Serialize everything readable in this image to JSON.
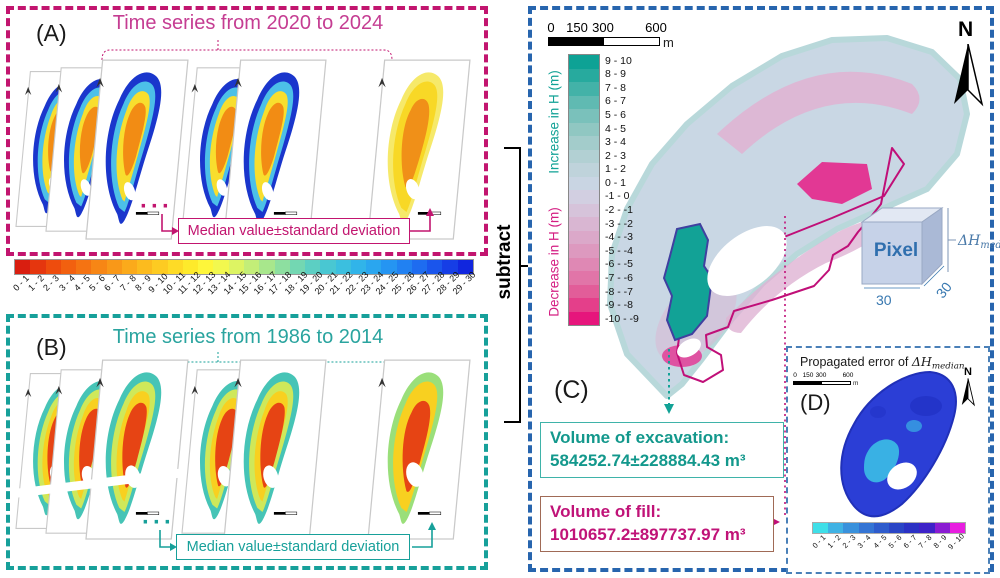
{
  "panel_a": {
    "label": "(A)",
    "title": "Time series from 2020 to 2024",
    "dots": "···",
    "median_box": "Median value±standard deviation",
    "accent": "#c2156f"
  },
  "panel_b": {
    "label": "(B)",
    "title": "Time series from 1986 to 2014",
    "dots": "···",
    "median_box": "Median value±standard deviation",
    "accent": "#17a09a"
  },
  "subtract": {
    "label": "subtract"
  },
  "elevation_colorbar": {
    "labels": [
      "0 - 1",
      "1 - 2",
      "2 - 3",
      "3 - 4",
      "4 - 5",
      "5 - 6",
      "6 - 7",
      "7 - 8",
      "8 - 9",
      "9 - 10",
      "10 - 11",
      "11 - 12",
      "12 - 13",
      "13 - 14",
      "14 - 15",
      "15 - 16",
      "16 - 17",
      "17 - 18",
      "18 - 19",
      "19 - 20",
      "20 - 21",
      "21 - 22",
      "22 - 23",
      "23 - 24",
      "24 - 25",
      "25 - 26",
      "26 - 27",
      "27 - 28",
      "28 - 29",
      "29 - 30"
    ],
    "colors": [
      "#d91e10",
      "#e5360e",
      "#ee4c0d",
      "#f2600f",
      "#f57312",
      "#f78615",
      "#f99818",
      "#fbaa1b",
      "#fcbb1e",
      "#fdcb22",
      "#fedb26",
      "#feea2b",
      "#fef63a",
      "#f2f84e",
      "#ddf463",
      "#c3ee78",
      "#a8e78c",
      "#8ddfa0",
      "#73d7b2",
      "#5ccfc3",
      "#49c7d2",
      "#3bbfdf",
      "#31b4e9",
      "#2aa6ef",
      "#2595f2",
      "#2181f2",
      "#1e6cf0",
      "#1a55ec",
      "#163ee6",
      "#1126de"
    ]
  },
  "panel_c": {
    "label": "(C)",
    "north": "N",
    "scalebar": {
      "ticks": [
        "0",
        "150",
        "300",
        "600"
      ],
      "unit": "m"
    },
    "legend": {
      "increase": "Increase in H (m)",
      "decrease": "Decrease in H (m)",
      "increase_color": "#12a296",
      "decrease_color": "#d41d82",
      "entries": [
        {
          "range": "9 - 10",
          "color": "#0ea295"
        },
        {
          "range": "8 - 9",
          "color": "#27aa9e"
        },
        {
          "range": "7 - 8",
          "color": "#43b2a8"
        },
        {
          "range": "6 - 7",
          "color": "#60bab2"
        },
        {
          "range": "5 - 6",
          "color": "#7ac1bb"
        },
        {
          "range": "4 - 5",
          "color": "#90c7c2"
        },
        {
          "range": "3 - 4",
          "color": "#a3cccb"
        },
        {
          "range": "2 - 3",
          "color": "#b2d0d3"
        },
        {
          "range": "1 - 2",
          "color": "#bfd3db"
        },
        {
          "range": "0 - 1",
          "color": "#c9d5e3"
        },
        {
          "range": "-1 - 0",
          "color": "#d2cfe1"
        },
        {
          "range": "-2 - -1",
          "color": "#d6c3da"
        },
        {
          "range": "-3 - -2",
          "color": "#d9b6d2"
        },
        {
          "range": "-4 - -3",
          "color": "#dba8c9"
        },
        {
          "range": "-5 - -4",
          "color": "#dd99bf"
        },
        {
          "range": "-6 - -5",
          "color": "#df88b4"
        },
        {
          "range": "-7 - -6",
          "color": "#e175a8"
        },
        {
          "range": "-8 - -7",
          "color": "#e25d99"
        },
        {
          "range": "-9 - -8",
          "color": "#e43f8a"
        },
        {
          "range": "-10 - -9",
          "color": "#e6157c"
        }
      ]
    },
    "pixel_cube": {
      "face_label": "Pixel",
      "height_symbol": "ΔH",
      "height_sub": "median",
      "width_label": "30",
      "depth_label": "30"
    },
    "volume_excavation": {
      "title": "Volume of excavation:",
      "value": "584252.74±228884.43 m³"
    },
    "volume_fill": {
      "title": "Volume of fill:",
      "value": "1010657.2±897737.97 m³"
    }
  },
  "panel_d": {
    "label": "(D)",
    "north": "N",
    "title": {
      "prefix": "Propagated error of ",
      "symbol": "ΔH",
      "sub": "median"
    },
    "scalebar": {
      "ticks": [
        "0",
        "150",
        "300",
        "600"
      ],
      "unit": "m"
    },
    "error_colorbar": {
      "labels": [
        "0 - 1",
        "1 - 2",
        "2 - 3",
        "3 - 4",
        "4 - 5",
        "5 - 6",
        "6 - 7",
        "7 - 8",
        "8 - 9",
        "9 - 10"
      ],
      "colors": [
        "#3fdfe8",
        "#3fb2e4",
        "#3991dc",
        "#3474d4",
        "#2e5bcc",
        "#2a45c6",
        "#2b31c4",
        "#3d22c8",
        "#8a1cd2",
        "#e81ee0"
      ]
    }
  }
}
